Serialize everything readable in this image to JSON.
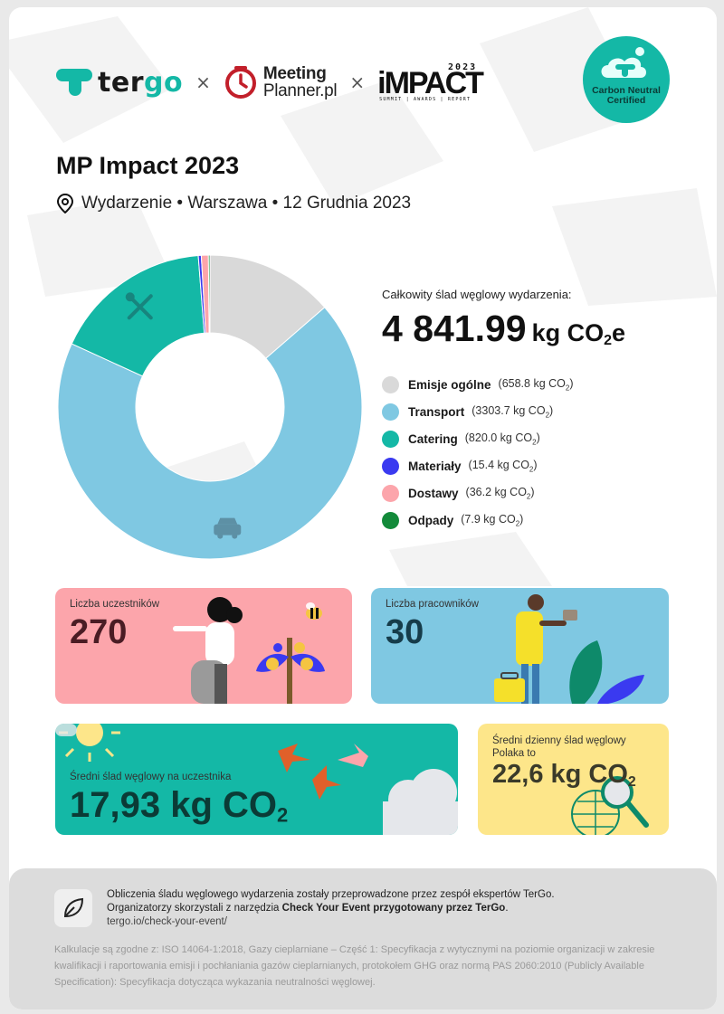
{
  "header": {
    "logo_tergo": {
      "icon": "tergo-logo-icon",
      "text_a": "ter",
      "text_b": "go"
    },
    "separator": "×",
    "logo_mp": {
      "line1": "Meeting",
      "line2": "Planner.pl"
    },
    "logo_impact": {
      "word": "iMPACT",
      "year": "2023",
      "sub": "SUMMIT | AWARDS | REPORT"
    },
    "badge": {
      "line1": "Carbon Neutral",
      "line2": "Certified"
    }
  },
  "event": {
    "title": "MP Impact 2023",
    "subtitle": "Wydarzenie • Warszawa • 12 Grudnia 2023",
    "location_icon": "map-pin-icon"
  },
  "summary": {
    "total_label": "Całkowity ślad węglowy wydarzenia:",
    "total_value": "4 841.99",
    "unit_a": "kg CO",
    "unit_sub": "2",
    "unit_b": "e"
  },
  "chart_data": {
    "type": "pie",
    "donut": true,
    "unit": "kg CO2",
    "total": 4841.99,
    "categories": [
      "Emisje ogólne",
      "Transport",
      "Catering",
      "Materiały",
      "Dostawy",
      "Odpady"
    ],
    "values": [
      658.8,
      3303.7,
      820.0,
      15.4,
      36.2,
      7.9
    ],
    "value_labels": [
      "(658.8 kg CO",
      "(3303.7 kg CO",
      "(820.0 kg CO",
      "(15.4 kg CO",
      "(36.2 kg CO",
      "(7.9 kg CO"
    ],
    "colors": [
      "#d9d9d9",
      "#7fc8e2",
      "#14b8a6",
      "#3a3af0",
      "#fca5ab",
      "#138a3a"
    ],
    "segment_icons": [
      "",
      "car-icon",
      "utensils-icon",
      "",
      "",
      ""
    ],
    "legend_position": "right"
  },
  "cards": {
    "participants": {
      "label": "Liczba uczestników",
      "value": "270"
    },
    "employees": {
      "label": "Liczba pracowników",
      "value": "30"
    },
    "per_participant": {
      "label": "Średni ślad węglowy na uczestnika",
      "value": "17,93 kg CO",
      "sub": "2"
    },
    "daily_pole": {
      "label_line1": "Średni dzienny ślad węglowy",
      "label_line2": "Polaka to",
      "value": "22,6 kg CO",
      "sub": "2"
    }
  },
  "footer": {
    "icon": "leaf-icon",
    "line1": "Obliczenia śladu węglowego wydarzenia zostały przeprowadzone przez zespół ekspertów TerGo.",
    "line2_a": "Organizatorzy skorzystali z narzędzia ",
    "line2_b": "Check Your Event przygotowany przez TerGo",
    "line2_c": ".",
    "link": "tergo.io/check-your-event/",
    "note": "Kalkulacje są zgodne z: ISO 14064-1:2018, Gazy cieplarniane – Część 1: Specyfikacja z wytycznymi na poziomie organizacji w zakresie kwalifikacji i raportowania emisji i pochłaniania gazów cieplarnianych, protokołem GHG oraz normą PAS 2060:2010 (Publicly Available Specification): Specyfikacja dotycząca wykazania neutralności węglowej."
  }
}
